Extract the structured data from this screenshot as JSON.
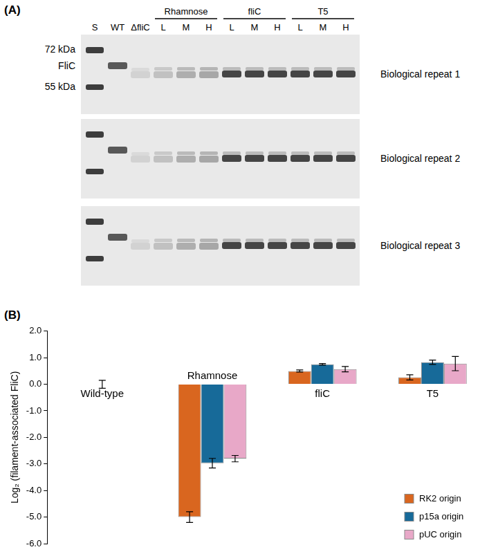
{
  "panel_a": {
    "label": "(A)",
    "lanes": [
      "S",
      "WT",
      "ΔfliC"
    ],
    "groups": [
      {
        "name": "Rhamnose",
        "lanes": [
          "L",
          "M",
          "H"
        ]
      },
      {
        "name": "fliC",
        "lanes": [
          "L",
          "M",
          "H"
        ]
      },
      {
        "name": "T5",
        "lanes": [
          "L",
          "M",
          "H"
        ]
      }
    ],
    "marker_labels": [
      "72 kDa",
      "FliC",
      "55 kDa"
    ],
    "gels": [
      "Biological repeat 1",
      "Biological repeat 2",
      "Biological repeat 3"
    ]
  },
  "panel_b": {
    "label": "(B)"
  },
  "chart_data": {
    "type": "bar",
    "categories": [
      "Wild-type",
      "Rhamnose",
      "fliC",
      "T5"
    ],
    "series": [
      {
        "name": "RK2 origin",
        "color": "#d9661f",
        "values": [
          null,
          -5.0,
          0.5,
          0.26
        ],
        "errors": [
          null,
          0.2,
          0.04,
          0.1
        ]
      },
      {
        "name": "p15a origin",
        "color": "#176a99",
        "values": [
          0,
          -2.97,
          0.75,
          0.83
        ],
        "errors": [
          0.15,
          0.18,
          0.03,
          0.08
        ]
      },
      {
        "name": "pUC origin",
        "color": "#e8a8c8",
        "values": [
          null,
          -2.8,
          0.57,
          0.78
        ],
        "errors": [
          null,
          0.12,
          0.1,
          0.27
        ]
      }
    ],
    "y_label": "Log₂ (filament-associated FliC)",
    "ylim": [
      -6,
      2
    ],
    "yticks": [
      {
        "value": 2,
        "label": "2.0"
      },
      {
        "value": 1,
        "label": "1.0"
      },
      {
        "value": 0,
        "label": "0.0"
      },
      {
        "value": -1,
        "label": "-1.0"
      },
      {
        "value": -2,
        "label": "-2.0"
      },
      {
        "value": -3,
        "label": "-3.0"
      },
      {
        "value": -4,
        "label": "-4.0"
      },
      {
        "value": -5,
        "label": "-5.0"
      },
      {
        "value": -6,
        "label": "-6.0"
      }
    ],
    "grid": false,
    "legend": "lower right"
  }
}
